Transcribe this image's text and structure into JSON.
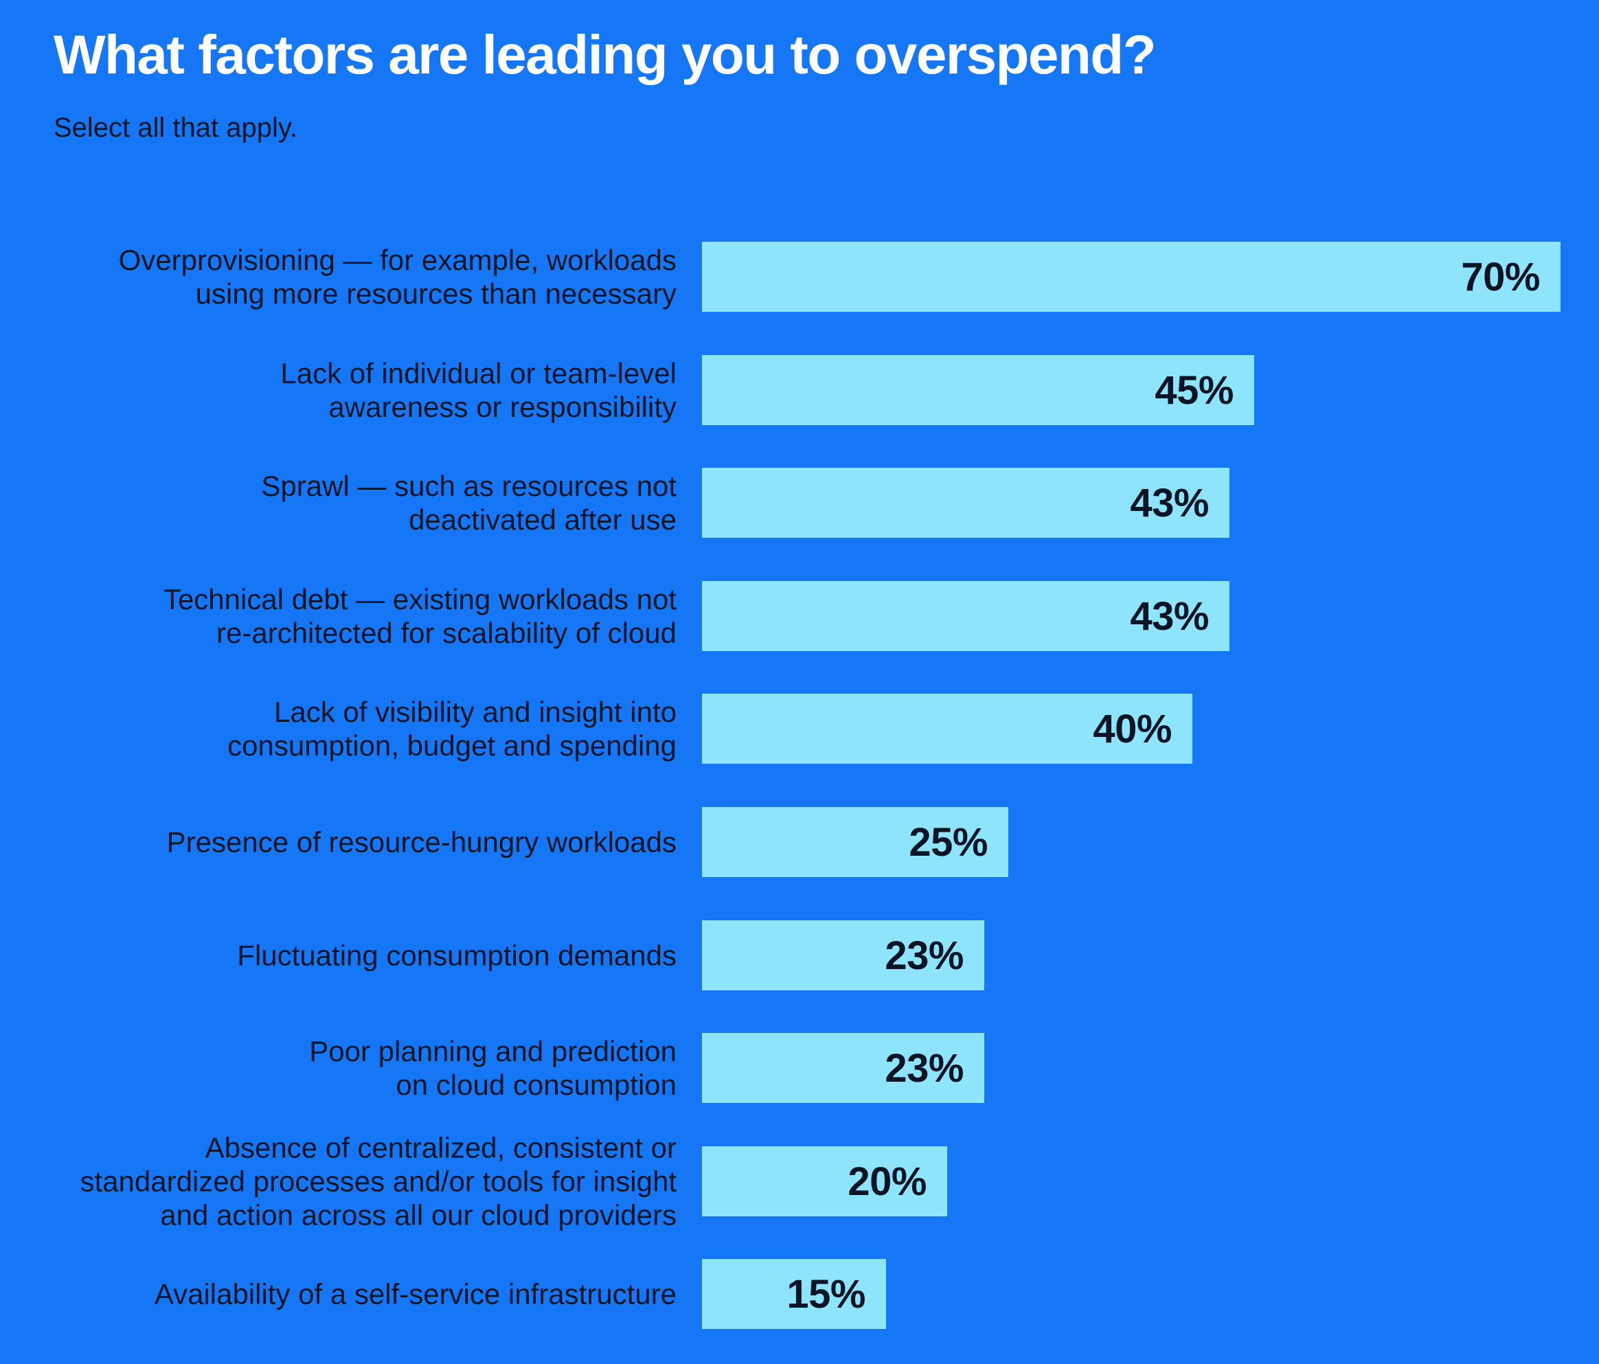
{
  "title": "What factors are leading you to overspend?",
  "subtitle": "Select all that apply.",
  "colors": {
    "background": "#1577F5",
    "bar": "#8EE5FB",
    "title_text": "#FFFFFF",
    "label_text": "#0B1526"
  },
  "chart_data": {
    "type": "bar",
    "orientation": "horizontal",
    "title": "What factors are leading you to overspend?",
    "subtitle": "Select all that apply.",
    "xlabel": "",
    "ylabel": "",
    "xlim": [
      0,
      70
    ],
    "grid": false,
    "legend": false,
    "value_suffix": "%",
    "categories": [
      "Overprovisioning — for example, workloads\nusing more resources than necessary",
      "Lack of individual or team-level\nawareness or responsibility",
      "Sprawl — such as resources not\ndeactivated after use",
      "Technical debt — existing workloads not\nre-architected for scalability of cloud",
      "Lack of visibility and insight into\nconsumption, budget and spending",
      "Presence of resource-hungry workloads",
      "Fluctuating consumption demands",
      "Poor planning and prediction\non cloud consumption",
      "Absence of centralized, consistent or\nstandardized processes and/or tools for insight\nand action across all our cloud providers",
      "Availability of a self-service infrastructure"
    ],
    "values": [
      70,
      45,
      43,
      43,
      40,
      25,
      23,
      23,
      20,
      15
    ],
    "value_labels": [
      "70%",
      "45%",
      "43%",
      "43%",
      "40%",
      "25%",
      "23%",
      "23%",
      "20%",
      "15%"
    ]
  }
}
